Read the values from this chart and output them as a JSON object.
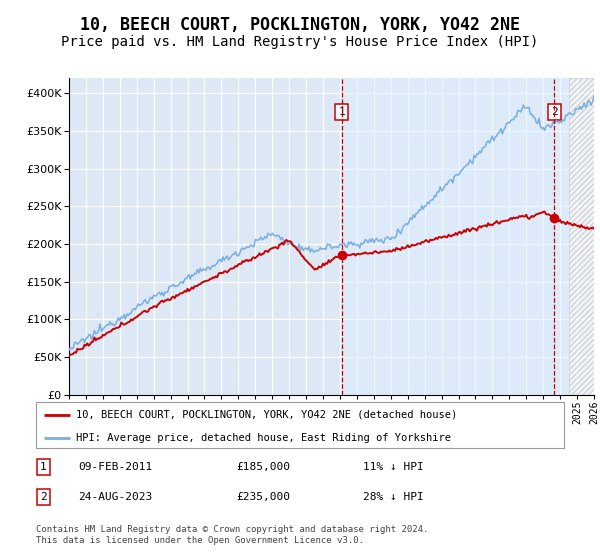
{
  "title": "10, BEECH COURT, POCKLINGTON, YORK, YO42 2NE",
  "subtitle": "Price paid vs. HM Land Registry's House Price Index (HPI)",
  "legend_line1": "10, BEECH COURT, POCKLINGTON, YORK, YO42 2NE (detached house)",
  "legend_line2": "HPI: Average price, detached house, East Riding of Yorkshire",
  "annotation1": {
    "label": "1",
    "date": "09-FEB-2011",
    "price": "£185,000",
    "pct": "11% ↓ HPI",
    "x_year": 2011.1
  },
  "annotation2": {
    "label": "2",
    "date": "24-AUG-2023",
    "price": "£235,000",
    "pct": "28% ↓ HPI",
    "x_year": 2023.65
  },
  "footnote": "Contains HM Land Registry data © Crown copyright and database right 2024.\nThis data is licensed under the Open Government Licence v3.0.",
  "ylim": [
    0,
    420000
  ],
  "xlim_start": 1995,
  "xlim_end": 2026,
  "sale1_price": 185000,
  "sale2_price": 235000,
  "background_color": "#dce8f5",
  "hatch_bg": "#e8eef5",
  "hpi_color": "#7aade0",
  "price_color": "#cc0000",
  "grid_color": "#ffffff",
  "dashed_color": "#cc0000",
  "title_fontsize": 12,
  "subtitle_fontsize": 10
}
